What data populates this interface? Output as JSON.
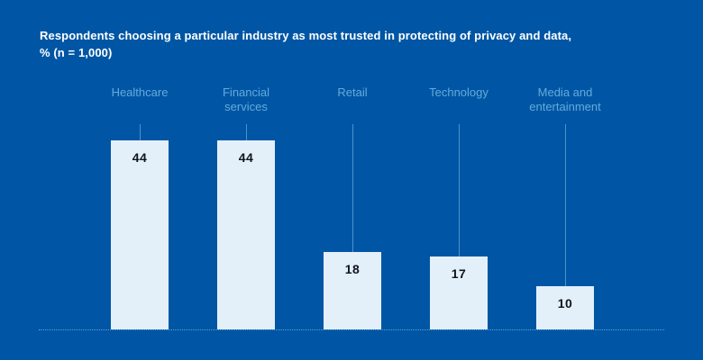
{
  "page": {
    "background_color": "#0056A4"
  },
  "header": {
    "title_display": "Respondents choosing a particular industry as most trusted in protecting of privacy and data,\n% (n = 1,000)"
  },
  "chart_data": {
    "type": "bar",
    "title": "Respondents choosing a particular industry as most trusted in protecting of privacy and data, % (n = 1,000)",
    "unit": "%",
    "sample_size": "n = 1,000",
    "categories": [
      "Healthcare",
      "Financial services",
      "Retail",
      "Technology",
      "Media and entertainment"
    ],
    "category_labels_display": [
      "Healthcare",
      "Financial\nservices",
      "Retail",
      "Technology",
      "Media and\nentertainment"
    ],
    "values": [
      44,
      44,
      18,
      17,
      10
    ],
    "xlabel": "",
    "ylabel": "",
    "ylim": [
      0,
      48
    ],
    "grid": false,
    "legend": "none",
    "data_label_position": "inside-top",
    "colors": {
      "background": "#0056A4",
      "title_text": "#FFFFFF",
      "bar_fill": "#E3F0FA",
      "value_text": "#10141A",
      "category_text": "#64AADC",
      "leader_line": "#4B92CC",
      "baseline": "#5C9FD4"
    }
  }
}
